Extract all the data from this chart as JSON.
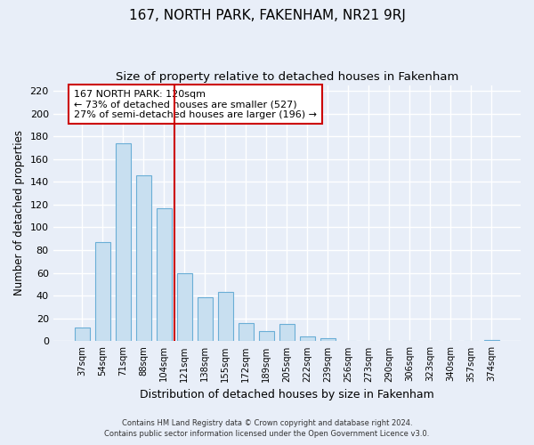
{
  "title": "167, NORTH PARK, FAKENHAM, NR21 9RJ",
  "subtitle": "Size of property relative to detached houses in Fakenham",
  "xlabel": "Distribution of detached houses by size in Fakenham",
  "ylabel": "Number of detached properties",
  "footer_line1": "Contains HM Land Registry data © Crown copyright and database right 2024.",
  "footer_line2": "Contains public sector information licensed under the Open Government Licence v3.0.",
  "bar_labels": [
    "37sqm",
    "54sqm",
    "71sqm",
    "88sqm",
    "104sqm",
    "121sqm",
    "138sqm",
    "155sqm",
    "172sqm",
    "189sqm",
    "205sqm",
    "222sqm",
    "239sqm",
    "256sqm",
    "273sqm",
    "290sqm",
    "306sqm",
    "323sqm",
    "340sqm",
    "357sqm",
    "374sqm"
  ],
  "bar_values": [
    12,
    87,
    174,
    146,
    117,
    60,
    39,
    43,
    16,
    9,
    15,
    4,
    3,
    0,
    0,
    0,
    0,
    0,
    0,
    0,
    1
  ],
  "bar_color": "#c8dff0",
  "bar_edge_color": "#6aaed6",
  "vline_x_index": 4,
  "vline_color": "#cc0000",
  "annotation_text": "167 NORTH PARK: 120sqm\n← 73% of detached houses are smaller (527)\n27% of semi-detached houses are larger (196) →",
  "annotation_box_edge_color": "#cc0000",
  "annotation_box_face_color": "#ffffff",
  "ylim": [
    0,
    225
  ],
  "yticks": [
    0,
    20,
    40,
    60,
    80,
    100,
    120,
    140,
    160,
    180,
    200,
    220
  ],
  "bg_color": "#e8eef8",
  "grid_color": "#ffffff",
  "title_fontsize": 11,
  "subtitle_fontsize": 9.5,
  "bar_width": 0.75
}
